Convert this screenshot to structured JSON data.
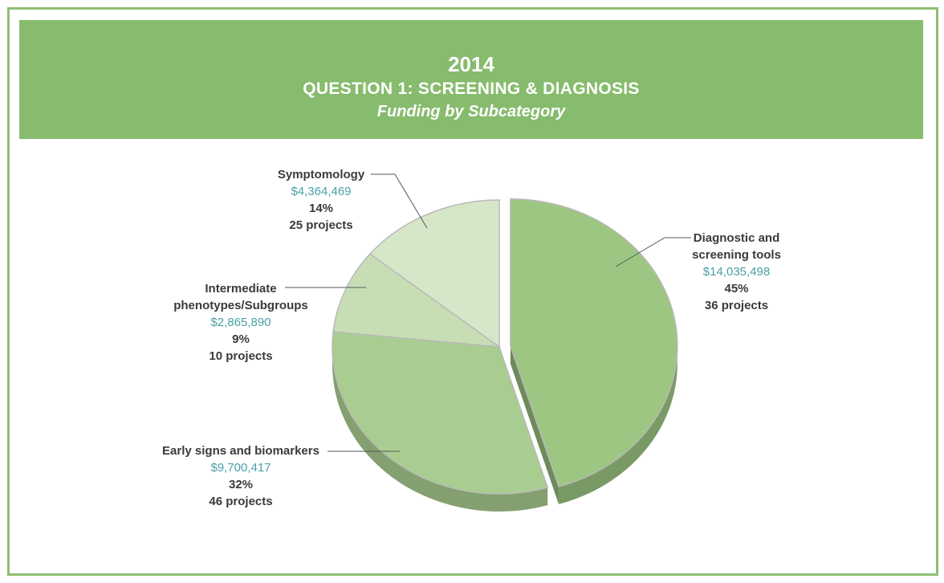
{
  "header": {
    "year": "2014",
    "question": "QUESTION 1:  SCREENING & DIAGNOSIS",
    "subtitle": "Funding by Subcategory"
  },
  "colors": {
    "banner": "#87bb6d",
    "border": "#8dbf73",
    "amount_text": "#4aa0a8",
    "label_text": "#3a3a3a"
  },
  "chart_data": {
    "type": "pie",
    "title": "2014",
    "subtitle": "QUESTION 1:  SCREENING & DIAGNOSIS — Funding by Subcategory",
    "slices": [
      {
        "name": "Diagnostic and screening tools",
        "name_lines": [
          "Diagnostic and",
          "screening tools"
        ],
        "amount": "$14,035,498",
        "value": 14035498,
        "percent": "45%",
        "projects": "36 projects",
        "color": "#9dc682",
        "exploded": true
      },
      {
        "name": "Early signs and biomarkers",
        "name_lines": [
          "Early signs and biomarkers"
        ],
        "amount": "$9,700,417",
        "value": 9700417,
        "percent": "32%",
        "projects": "46 projects",
        "color": "#a9cd90",
        "exploded": false
      },
      {
        "name": "Intermediate phenotypes/Subgroups",
        "name_lines": [
          "Intermediate",
          "phenotypes/Subgroups"
        ],
        "amount": "$2,865,890",
        "value": 2865890,
        "percent": "9%",
        "projects": "10 projects",
        "color": "#c7deb5",
        "exploded": false
      },
      {
        "name": "Symptomology",
        "name_lines": [
          "Symptomology"
        ],
        "amount": "$4,364,469",
        "value": 4364469,
        "percent": "14%",
        "projects": "25 projects",
        "color": "#d6e6c8",
        "exploded": false
      }
    ]
  }
}
